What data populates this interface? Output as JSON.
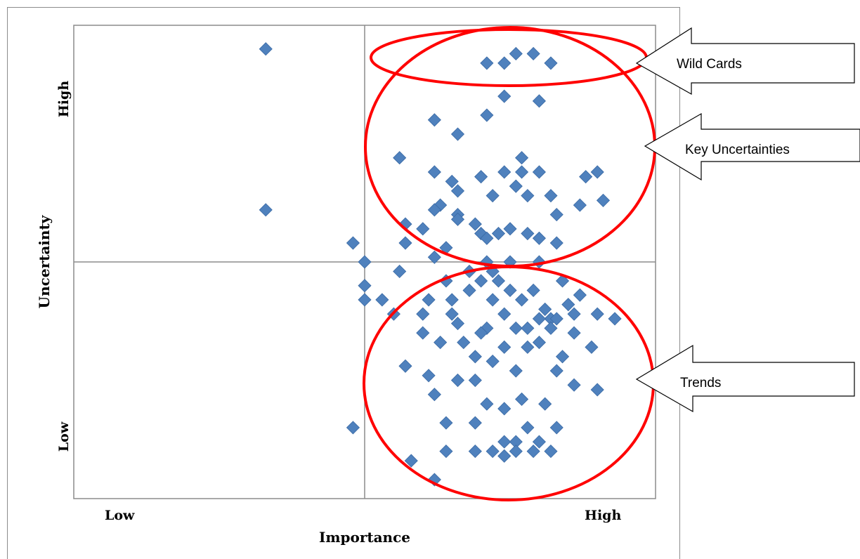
{
  "chart_data": {
    "type": "scatter",
    "xlabel": "Importance",
    "ylabel": "Uncertainty",
    "x_tick_labels": {
      "low": "Low",
      "high": "High"
    },
    "y_tick_labels": {
      "low": "Low",
      "high": "High"
    },
    "xlim": [
      0,
      10
    ],
    "ylim": [
      0,
      10
    ],
    "quadrant_split": {
      "x": 5,
      "y": 5
    },
    "grid": false,
    "marker": "diamond",
    "marker_color": "#4F81BD",
    "annotation_color": "#FF0000",
    "annotations": [
      {
        "label": "Wild Cards"
      },
      {
        "label": "Key Uncertainties"
      },
      {
        "label": "Trends"
      }
    ],
    "points": [
      [
        3.3,
        9.5
      ],
      [
        3.3,
        6.1
      ],
      [
        7.6,
        9.4
      ],
      [
        7.9,
        9.4
      ],
      [
        7.1,
        9.2
      ],
      [
        7.4,
        9.2
      ],
      [
        8.2,
        9.2
      ],
      [
        7.4,
        8.5
      ],
      [
        8.0,
        8.4
      ],
      [
        7.1,
        8.1
      ],
      [
        6.2,
        8.0
      ],
      [
        6.6,
        7.7
      ],
      [
        5.6,
        7.2
      ],
      [
        6.2,
        6.9
      ],
      [
        6.5,
        6.7
      ],
      [
        6.6,
        6.5
      ],
      [
        6.3,
        6.2
      ],
      [
        6.6,
        6.0
      ],
      [
        7.2,
        6.4
      ],
      [
        7.0,
        6.8
      ],
      [
        7.4,
        6.9
      ],
      [
        7.7,
        7.2
      ],
      [
        7.7,
        6.9
      ],
      [
        8.0,
        6.9
      ],
      [
        7.6,
        6.6
      ],
      [
        7.8,
        6.4
      ],
      [
        8.3,
        6.0
      ],
      [
        8.2,
        6.4
      ],
      [
        8.7,
        6.2
      ],
      [
        8.8,
        6.8
      ],
      [
        9.0,
        6.9
      ],
      [
        9.1,
        6.3
      ],
      [
        5.7,
        5.8
      ],
      [
        6.2,
        6.1
      ],
      [
        6.6,
        5.9
      ],
      [
        6.9,
        5.8
      ],
      [
        7.0,
        5.6
      ],
      [
        7.1,
        5.5
      ],
      [
        7.3,
        5.6
      ],
      [
        7.5,
        5.7
      ],
      [
        7.8,
        5.6
      ],
      [
        8.0,
        5.5
      ],
      [
        8.3,
        5.4
      ],
      [
        8.0,
        5.0
      ],
      [
        7.5,
        5.0
      ],
      [
        7.1,
        5.0
      ],
      [
        7.2,
        4.8
      ],
      [
        4.8,
        5.4
      ],
      [
        5.0,
        5.0
      ],
      [
        5.0,
        4.5
      ],
      [
        5.0,
        4.2
      ],
      [
        5.3,
        4.2
      ],
      [
        5.6,
        4.8
      ],
      [
        5.7,
        5.4
      ],
      [
        6.0,
        5.7
      ],
      [
        6.2,
        5.1
      ],
      [
        6.4,
        5.3
      ],
      [
        5.5,
        3.9
      ],
      [
        6.0,
        3.9
      ],
      [
        6.5,
        3.9
      ],
      [
        6.7,
        3.3
      ],
      [
        6.9,
        3.0
      ],
      [
        7.1,
        3.6
      ],
      [
        7.4,
        3.9
      ],
      [
        7.6,
        3.6
      ],
      [
        7.8,
        3.2
      ],
      [
        8.0,
        3.3
      ],
      [
        8.2,
        3.8
      ],
      [
        8.4,
        3.0
      ],
      [
        8.6,
        3.5
      ],
      [
        5.7,
        2.8
      ],
      [
        6.1,
        2.6
      ],
      [
        6.2,
        2.2
      ],
      [
        6.6,
        2.5
      ],
      [
        6.9,
        2.5
      ],
      [
        7.1,
        2.0
      ],
      [
        7.4,
        1.9
      ],
      [
        7.7,
        2.1
      ],
      [
        8.1,
        2.0
      ],
      [
        8.3,
        1.5
      ],
      [
        6.4,
        1.6
      ],
      [
        6.9,
        1.6
      ],
      [
        7.4,
        1.2
      ],
      [
        7.8,
        1.5
      ],
      [
        7.6,
        1.2
      ],
      [
        8.0,
        1.2
      ],
      [
        4.8,
        1.5
      ],
      [
        6.4,
        1.0
      ],
      [
        6.9,
        1.0
      ],
      [
        7.2,
        1.0
      ],
      [
        7.6,
        1.0
      ],
      [
        7.9,
        1.0
      ],
      [
        8.2,
        1.0
      ],
      [
        7.4,
        0.9
      ],
      [
        5.8,
        0.8
      ],
      [
        6.2,
        0.4
      ],
      [
        6.1,
        4.2
      ],
      [
        6.5,
        4.2
      ],
      [
        6.8,
        4.4
      ],
      [
        7.0,
        4.6
      ],
      [
        7.3,
        4.6
      ],
      [
        7.5,
        4.4
      ],
      [
        7.7,
        4.2
      ],
      [
        7.9,
        4.4
      ],
      [
        8.1,
        4.0
      ],
      [
        8.3,
        3.8
      ],
      [
        8.5,
        4.1
      ],
      [
        8.7,
        4.3
      ],
      [
        9.0,
        3.9
      ],
      [
        9.3,
        3.8
      ],
      [
        8.4,
        4.6
      ],
      [
        7.2,
        4.2
      ],
      [
        6.8,
        4.8
      ],
      [
        6.4,
        4.6
      ],
      [
        6.0,
        3.5
      ],
      [
        6.3,
        3.3
      ],
      [
        6.6,
        3.7
      ],
      [
        7.0,
        3.5
      ],
      [
        7.4,
        3.2
      ],
      [
        7.8,
        3.6
      ],
      [
        8.0,
        3.8
      ],
      [
        8.2,
        3.6
      ],
      [
        8.6,
        3.9
      ],
      [
        8.9,
        3.2
      ],
      [
        7.2,
        2.9
      ],
      [
        7.6,
        2.7
      ],
      [
        8.3,
        2.7
      ],
      [
        8.6,
        2.4
      ],
      [
        9.0,
        2.3
      ]
    ]
  }
}
